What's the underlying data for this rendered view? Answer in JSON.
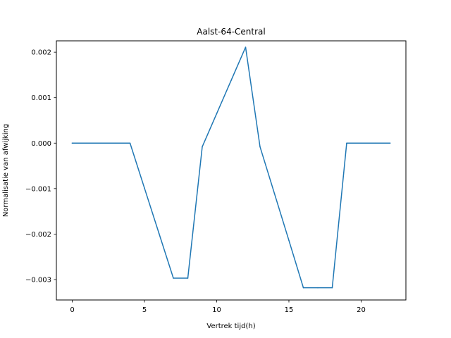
{
  "chart_data": {
    "type": "line",
    "title": "Aalst-64-Central",
    "xlabel": "Vertrek tijd(h)",
    "ylabel": "Normalisatie van afwijking",
    "xlim": [
      -1.1,
      23.1
    ],
    "ylim": [
      -0.00345,
      0.00225
    ],
    "xticks": [
      0,
      5,
      10,
      15,
      20
    ],
    "xtick_labels": [
      "0",
      "5",
      "10",
      "15",
      "20"
    ],
    "yticks": [
      -0.003,
      -0.002,
      -0.001,
      0.0,
      0.001,
      0.002
    ],
    "ytick_labels": [
      "−0.003",
      "−0.002",
      "−0.001",
      "0.000",
      "0.001",
      "0.002"
    ],
    "grid": false,
    "series": [
      {
        "color": "#1f77b4",
        "x": [
          0,
          1,
          2,
          3,
          4,
          5,
          6,
          7,
          8,
          9,
          10,
          11,
          12,
          13,
          14,
          15,
          16,
          17,
          18,
          19,
          20,
          21,
          22
        ],
        "y": [
          0.0,
          0.0,
          0.0,
          0.0,
          0.0,
          -0.00099,
          -0.00198,
          -0.00297,
          -0.00297,
          -8e-05,
          0.00065,
          0.00138,
          0.00211,
          -8e-05,
          -0.00111,
          -0.00214,
          -0.00318,
          -0.00318,
          -0.00318,
          0.0,
          0.0,
          0.0,
          0.0
        ]
      }
    ]
  }
}
